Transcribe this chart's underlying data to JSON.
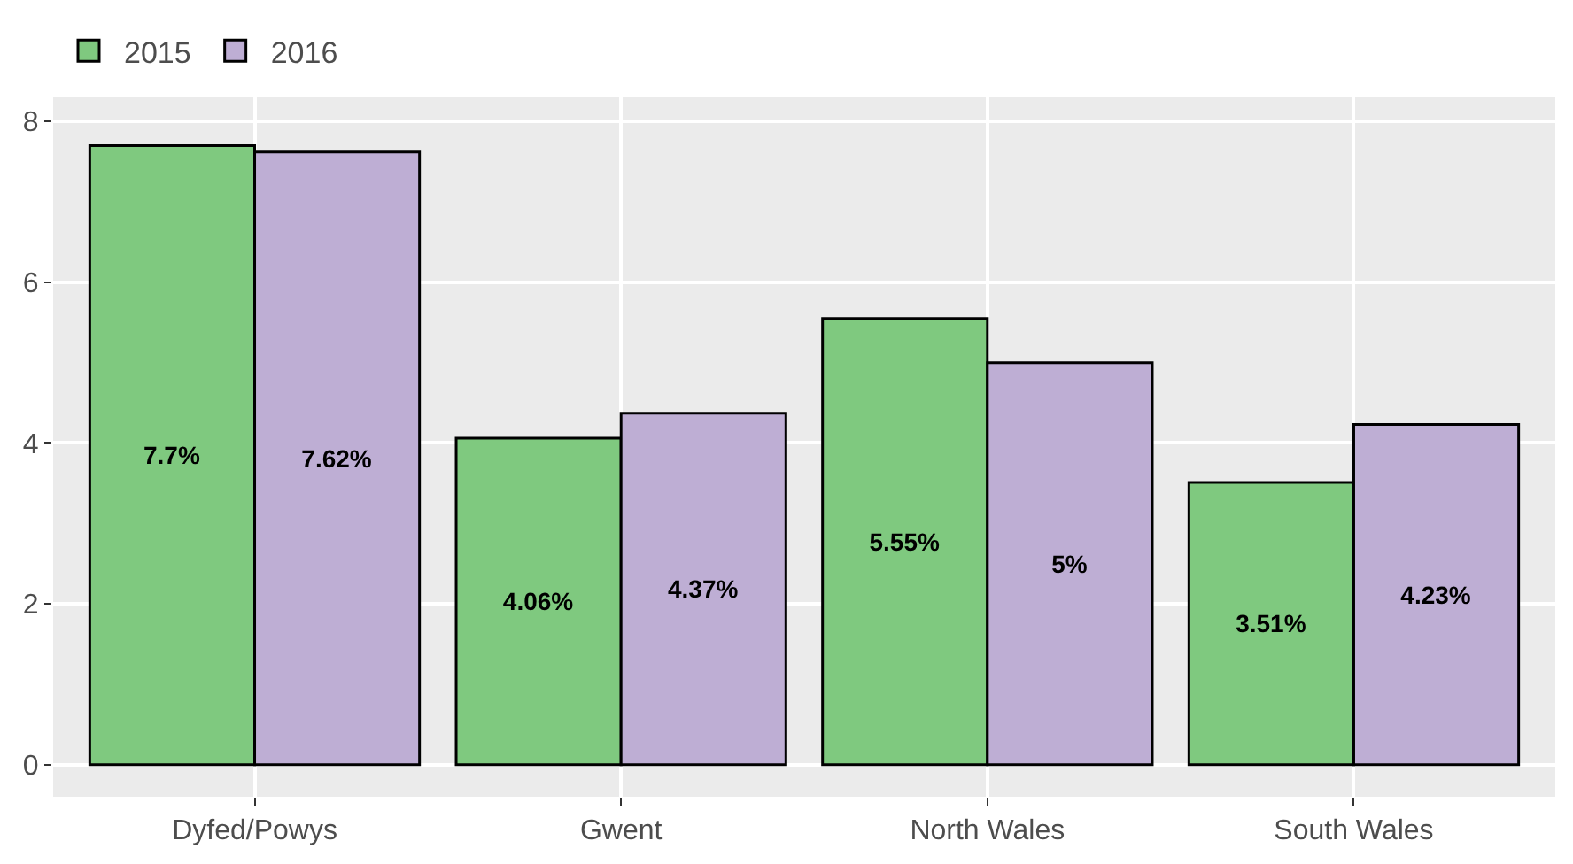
{
  "chart_data": {
    "type": "bar",
    "categories": [
      "Dyfed/Powys",
      "Gwent",
      "North Wales",
      "South Wales"
    ],
    "series": [
      {
        "name": "2015",
        "color": "#7fc97f",
        "values": [
          7.7,
          4.06,
          5.55,
          3.51
        ],
        "value_labels": [
          "7.7%",
          "4.06%",
          "5.55%",
          "3.51%"
        ]
      },
      {
        "name": "2016",
        "color": "#beaed4",
        "values": [
          7.62,
          4.37,
          5,
          4.23
        ],
        "value_labels": [
          "7.62%",
          "4.37%",
          "5%",
          "4.23%"
        ]
      }
    ],
    "ylim": [
      -0.4,
      8.3
    ],
    "yticks": [
      0,
      2,
      4,
      6,
      8
    ],
    "grid": true,
    "legend": "top left"
  }
}
